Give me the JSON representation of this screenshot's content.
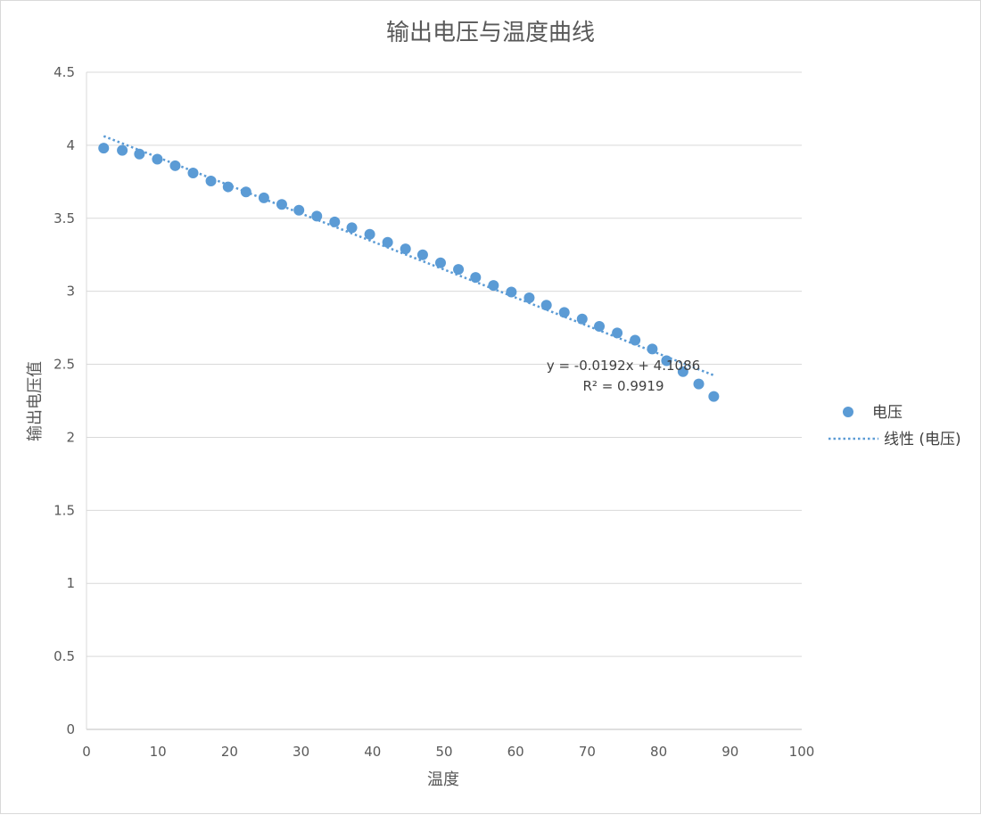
{
  "chart_data": {
    "type": "scatter",
    "title": "输出电压与温度曲线",
    "xlabel": "温度",
    "ylabel": "输出电压值",
    "xlim": [
      0,
      100
    ],
    "ylim": [
      0,
      4.5
    ],
    "x_ticks": [
      "0",
      "10",
      "20",
      "30",
      "40",
      "50",
      "60",
      "70",
      "80",
      "90",
      "100"
    ],
    "y_ticks": [
      "0",
      "0.5",
      "1",
      "1.5",
      "2",
      "2.5",
      "3",
      "3.5",
      "4",
      "4.5"
    ],
    "grid": true,
    "legend_position": "right",
    "series": [
      {
        "name": "电压",
        "color": "#5b9bd5",
        "x": [
          2.4,
          5.0,
          7.4,
          9.9,
          12.4,
          14.9,
          17.4,
          19.8,
          22.3,
          24.8,
          27.3,
          29.7,
          32.2,
          34.7,
          37.1,
          39.6,
          42.1,
          44.6,
          47.0,
          49.5,
          52.0,
          54.4,
          56.9,
          59.4,
          61.9,
          64.3,
          66.8,
          69.3,
          71.7,
          74.2,
          76.7,
          79.1,
          81.1,
          83.4,
          85.6,
          87.7
        ],
        "y": [
          3.98,
          3.965,
          3.94,
          3.905,
          3.86,
          3.81,
          3.755,
          3.715,
          3.68,
          3.64,
          3.595,
          3.555,
          3.515,
          3.475,
          3.435,
          3.39,
          3.335,
          3.29,
          3.25,
          3.195,
          3.15,
          3.095,
          3.04,
          2.995,
          2.955,
          2.905,
          2.855,
          2.81,
          2.76,
          2.715,
          2.665,
          2.605,
          2.525,
          2.45,
          2.365,
          2.28
        ]
      }
    ],
    "trendline": {
      "name": "线性 (电压)",
      "type": "linear",
      "slope": -0.0192,
      "intercept": 4.1086,
      "x_range": [
        2.4,
        87.7
      ],
      "color": "#5b9bd5",
      "equation": "y = -0.0192x + 4.1086",
      "r_squared": "R² = 0.9919"
    }
  }
}
